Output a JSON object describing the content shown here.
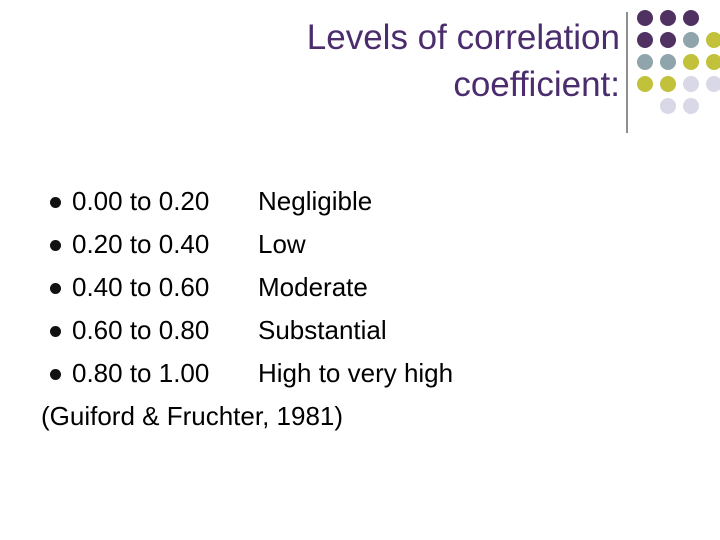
{
  "title": {
    "lines": [
      "Levels of correlation",
      "coefficient:"
    ]
  },
  "items": [
    {
      "range": "0.00 to 0.20",
      "level": "Negligible"
    },
    {
      "range": "0.20 to 0.40",
      "level": "Low"
    },
    {
      "range": "0.40 to 0.60",
      "level": "Moderate"
    },
    {
      "range": "0.60 to 0.80",
      "level": "Substantial"
    },
    {
      "range": "0.80 to 1.00",
      "level": "High to very high"
    }
  ],
  "citation": "(Guiford & Fruchter, 1981)"
}
